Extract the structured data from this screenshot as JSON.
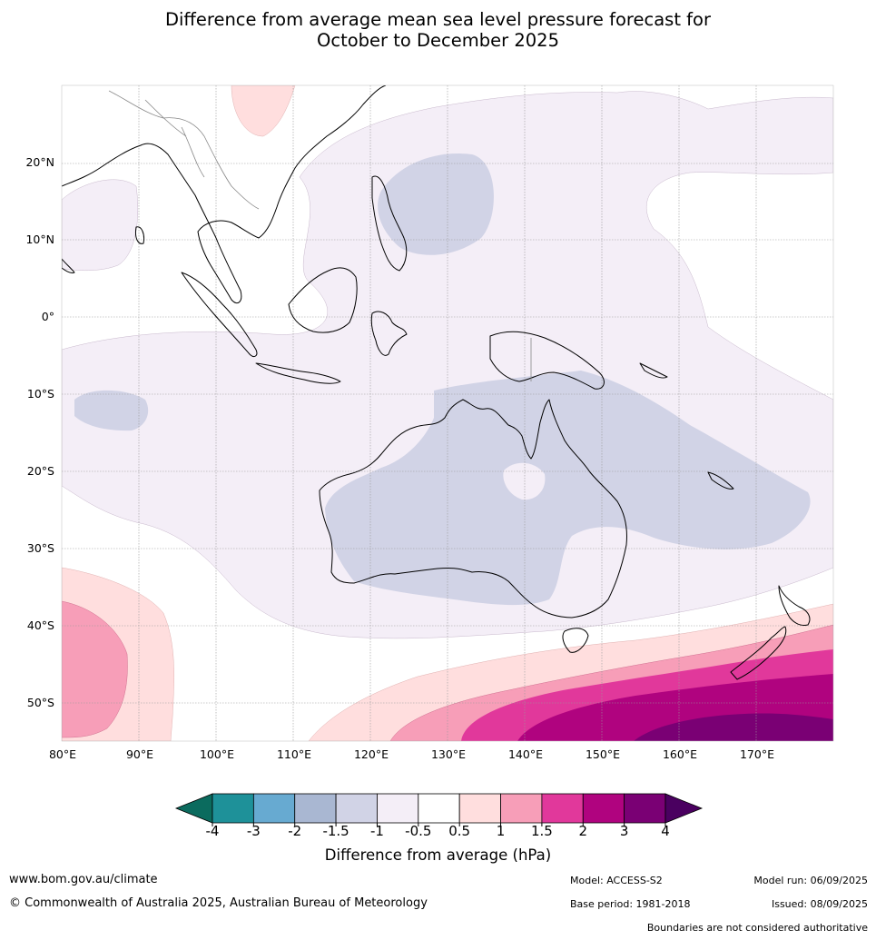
{
  "title_line1": "Difference from average mean sea level pressure forecast for",
  "title_line2": "October to December 2025",
  "map": {
    "lat_labels": [
      "20°N",
      "10°N",
      "0°",
      "10°S",
      "20°S",
      "30°S",
      "40°S",
      "50°S"
    ],
    "lon_labels": [
      "80°E",
      "90°E",
      "100°E",
      "110°E",
      "120°E",
      "130°E",
      "140°E",
      "150°E",
      "160°E",
      "170°E"
    ],
    "region": "Australia and surrounding region",
    "lat_range": [
      "55°S",
      "30°N"
    ],
    "lon_range": [
      "80°E",
      "180°E"
    ]
  },
  "colorbar": {
    "tick_labels": [
      "-4",
      "-3",
      "-2",
      "-1.5",
      "-1",
      "-0.5",
      "0.5",
      "1",
      "1.5",
      "2",
      "3",
      "4"
    ],
    "colors": [
      "#0b6b5e",
      "#1e9199",
      "#67aad1",
      "#a9b7d2",
      "#d1d3e6",
      "#f4eef7",
      "#ffffff",
      "#ffdede",
      "#f79eb8",
      "#e1389b",
      "#b0037f",
      "#7a0074",
      "#4a0060"
    ],
    "title": "Difference from average (hPa)"
  },
  "footer": {
    "website": "www.bom.gov.au/climate",
    "copyright": "© Commonwealth of Australia 2025, Australian Bureau of Meteorology",
    "model": "Model: ACCESS-S2",
    "base_period": "Base period: 1981-2018",
    "model_run": "Model run: 06/09/2025",
    "issued": "Issued: 08/09/2025",
    "disclaimer": "Boundaries are not considered authoritative"
  }
}
